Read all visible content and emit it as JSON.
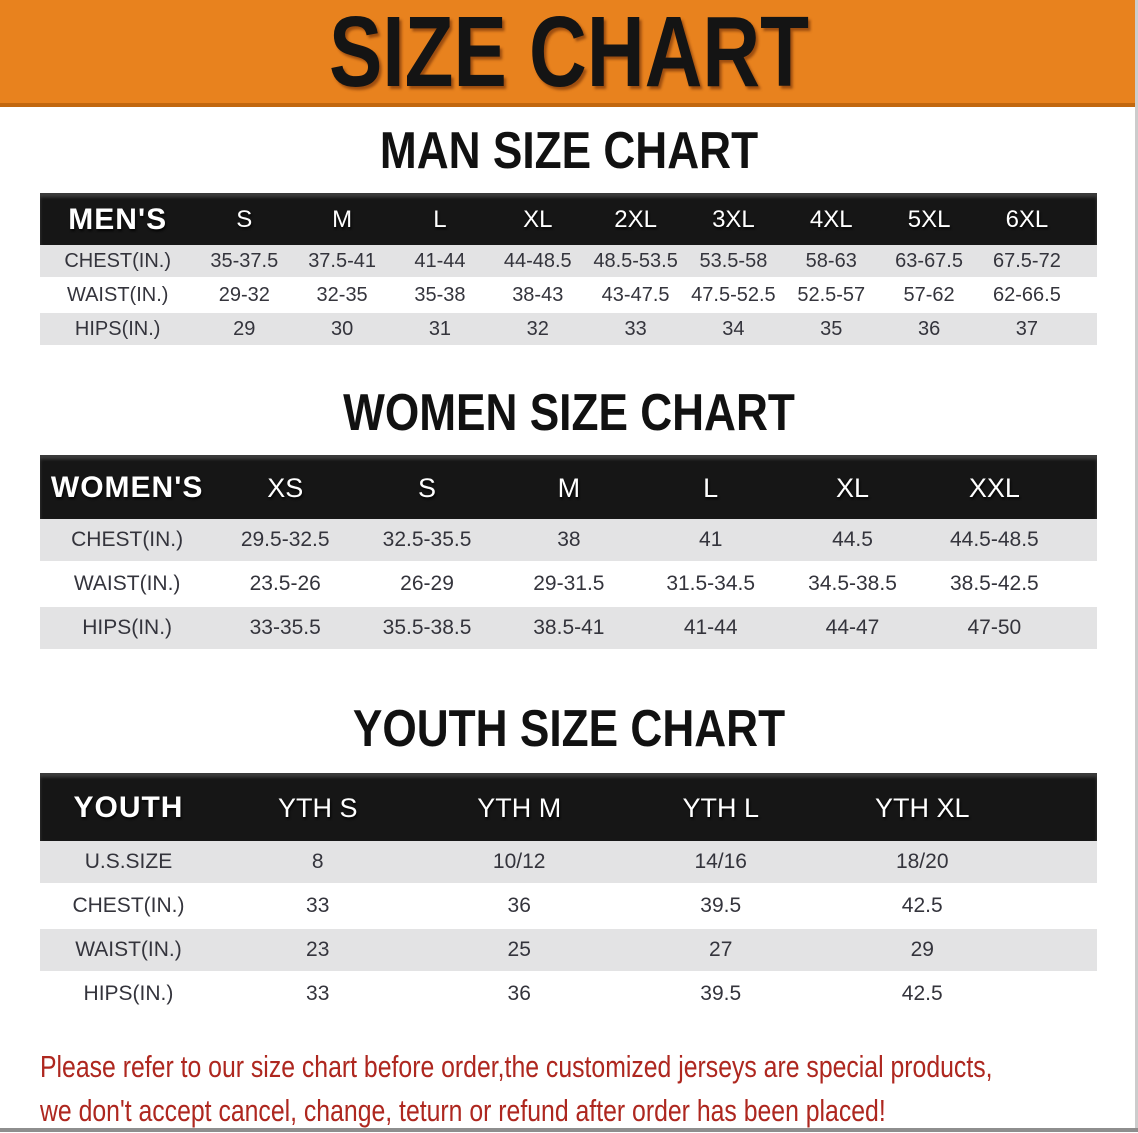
{
  "banner": {
    "title": "SIZE CHART"
  },
  "colors": {
    "banner_bg": "#E8821E",
    "banner_border": "#C1670F",
    "band_bg": "#161616",
    "stripe": "#E3E3E4",
    "table_text": "#34343C",
    "header_text": "#FFFFFF",
    "heading_text": "#111111",
    "disclaimer_text": "#AE271F"
  },
  "sections": [
    {
      "heading": "MAN SIZE CHART",
      "table": {
        "label": "MEN'S",
        "columns": [
          "S",
          "M",
          "L",
          "XL",
          "2XL",
          "3XL",
          "4XL",
          "5XL",
          "6XL"
        ],
        "rows": [
          {
            "label": "CHEST(IN.)",
            "values": [
              "35-37.5",
              "37.5-41",
              "41-44",
              "44-48.5",
              "48.5-53.5",
              "53.5-58",
              "58-63",
              "63-67.5",
              "67.5-72"
            ]
          },
          {
            "label": "WAIST(IN.)",
            "values": [
              "29-32",
              "32-35",
              "35-38",
              "38-43",
              "43-47.5",
              "47.5-52.5",
              "52.5-57",
              "57-62",
              "62-66.5"
            ]
          },
          {
            "label": "HIPS(IN.)",
            "values": [
              "29",
              "30",
              "31",
              "32",
              "33",
              "34",
              "35",
              "36",
              "37"
            ]
          }
        ]
      }
    },
    {
      "heading": "WOMEN SIZE CHART",
      "table": {
        "label": "WOMEN'S",
        "columns": [
          "XS",
          "S",
          "M",
          "L",
          "XL",
          "XXL"
        ],
        "rows": [
          {
            "label": "CHEST(IN.)",
            "values": [
              "29.5-32.5",
              "32.5-35.5",
              "38",
              "41",
              "44.5",
              "44.5-48.5"
            ]
          },
          {
            "label": "WAIST(IN.)",
            "values": [
              "23.5-26",
              "26-29",
              "29-31.5",
              "31.5-34.5",
              "34.5-38.5",
              "38.5-42.5"
            ]
          },
          {
            "label": "HIPS(IN.)",
            "values": [
              "33-35.5",
              "35.5-38.5",
              "38.5-41",
              "41-44",
              "44-47",
              "47-50"
            ]
          }
        ]
      }
    },
    {
      "heading": "YOUTH SIZE CHART",
      "table": {
        "label": "YOUTH",
        "columns": [
          "YTH S",
          "YTH M",
          "YTH L",
          "YTH XL"
        ],
        "rows": [
          {
            "label": "U.S.SIZE",
            "values": [
              "8",
              "10/12",
              "14/16",
              "18/20"
            ]
          },
          {
            "label": "CHEST(IN.)",
            "values": [
              "33",
              "36",
              "39.5",
              "42.5"
            ]
          },
          {
            "label": "WAIST(IN.)",
            "values": [
              "23",
              "25",
              "27",
              "29"
            ]
          },
          {
            "label": "HIPS(IN.)",
            "values": [
              "33",
              "36",
              "39.5",
              "42.5"
            ]
          }
        ]
      }
    }
  ],
  "disclaimer": {
    "lines": [
      "Please refer to our size chart before order,the customized jerseys are special products,",
      "we don't accept cancel, change, teturn or refund after order has been placed!"
    ]
  }
}
